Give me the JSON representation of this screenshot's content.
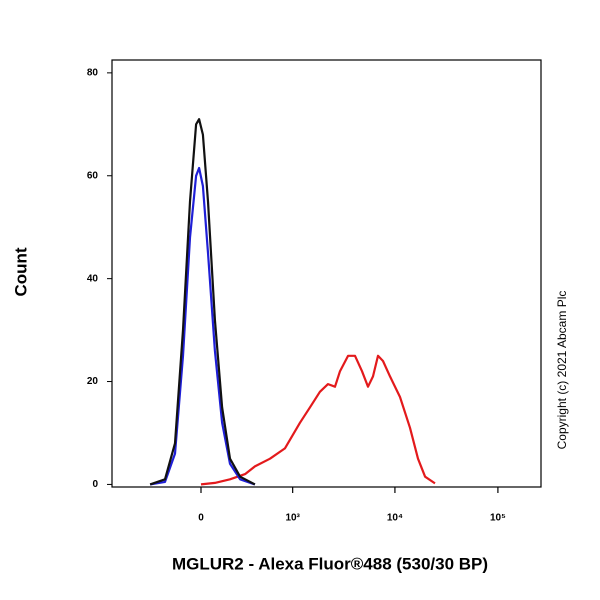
{
  "chart_data": {
    "type": "line",
    "x_label": "MGLUR2 - Alexa Fluor®488 (530/30 BP)",
    "y_label": "Count",
    "annotation": "Copyright (c) 2021 Abcam Plc",
    "xscale": "biexponential",
    "xlim": [
      -940,
      262000
    ],
    "ylim": [
      -0.5,
      82.5
    ],
    "xticks": [
      0,
      {
        "value": 1000,
        "label": "10³"
      },
      {
        "value": 10000,
        "label": "10⁴"
      },
      {
        "value": 100000,
        "label": "10⁵"
      }
    ],
    "yticks": [
      0,
      20,
      40,
      60,
      80
    ],
    "series": [
      {
        "color": "#e31a1c",
        "x": [
          0,
          83,
          182,
          302,
          398,
          584,
          835,
          1184,
          1488,
          1860,
          2232,
          2612,
          2926,
          3503,
          4095,
          4792,
          5481,
          6126,
          6851,
          7664,
          8963,
          11206,
          14017,
          16768,
          19624,
          24523
        ],
        "values": [
          0,
          0.3,
          1,
          2,
          3.5,
          5,
          7,
          12,
          15,
          18,
          19.5,
          19,
          22,
          25,
          25,
          22,
          19,
          21,
          25,
          24,
          21,
          17,
          11,
          5,
          1.5,
          0.2
        ]
      },
      {
        "color": "#1f1fd6",
        "x": [
          -367,
          -234,
          -161,
          -108,
          -65,
          -29,
          -11,
          11,
          41,
          83,
          128,
          182,
          259,
          398
        ],
        "values": [
          0,
          0.5,
          6,
          25,
          48,
          60,
          61.5,
          58,
          45,
          26,
          12,
          4,
          1,
          0
        ]
      },
      {
        "color": "#111111",
        "x": [
          -367,
          -234,
          -161,
          -108,
          -65,
          -29,
          -11,
          11,
          41,
          83,
          128,
          182,
          259,
          398
        ],
        "values": [
          0,
          1,
          8,
          30,
          55,
          70,
          71,
          68,
          55,
          32,
          15,
          5,
          1.5,
          0
        ]
      }
    ]
  }
}
